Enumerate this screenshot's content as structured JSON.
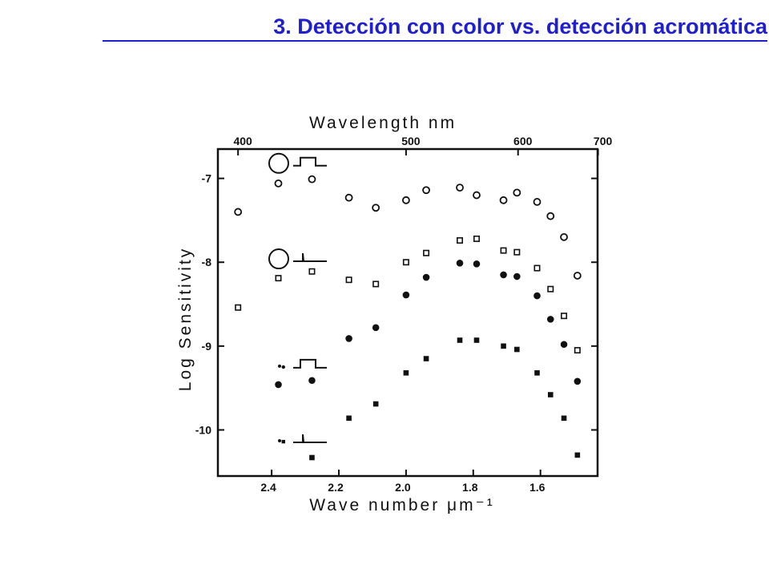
{
  "slide": {
    "title": "3. Detección con color vs. detección acromática"
  },
  "chart_data": {
    "type": "scatter",
    "title": "",
    "xlabel": "Wave number μm⁻¹",
    "x2label": "Wavelength nm",
    "ylabel": "Log Sensitivity",
    "x_ticks": [
      2.4,
      2.2,
      2.0,
      1.8,
      1.6
    ],
    "x_tick_labels": [
      "2.4",
      "2.2",
      "2.0",
      "1.8",
      "1.6"
    ],
    "x2_ticks_nm": [
      400,
      500,
      600,
      700
    ],
    "x2_tick_labels": [
      "400",
      "500",
      "600",
      "700"
    ],
    "y_ticks": [
      -7,
      -8,
      -9,
      -10
    ],
    "y_tick_labels": [
      "-7",
      "-8",
      "-9",
      "-10"
    ],
    "xlim": [
      2.56,
      1.43
    ],
    "ylim": [
      -10.55,
      -6.65
    ],
    "grid": false,
    "series": [
      {
        "marker": "open-circle",
        "stimulus": "large-field-long-pulse",
        "points": [
          [
            2.5,
            -7.4
          ],
          [
            2.38,
            -7.06
          ],
          [
            2.28,
            -7.01
          ],
          [
            2.17,
            -7.23
          ],
          [
            2.09,
            -7.35
          ],
          [
            2.0,
            -7.26
          ],
          [
            1.94,
            -7.14
          ],
          [
            1.84,
            -7.11
          ],
          [
            1.79,
            -7.2
          ],
          [
            1.71,
            -7.26
          ],
          [
            1.67,
            -7.17
          ],
          [
            1.61,
            -7.28
          ],
          [
            1.57,
            -7.45
          ],
          [
            1.53,
            -7.7
          ],
          [
            1.49,
            -8.16
          ]
        ]
      },
      {
        "marker": "open-square",
        "stimulus": "large-field-brief-flash",
        "points": [
          [
            2.5,
            -8.54
          ],
          [
            2.38,
            -8.19
          ],
          [
            2.28,
            -8.11
          ],
          [
            2.17,
            -8.21
          ],
          [
            2.09,
            -8.26
          ],
          [
            2.0,
            -8.0
          ],
          [
            1.94,
            -7.89
          ],
          [
            1.84,
            -7.74
          ],
          [
            1.79,
            -7.72
          ],
          [
            1.71,
            -7.86
          ],
          [
            1.67,
            -7.88
          ],
          [
            1.61,
            -8.07
          ],
          [
            1.57,
            -8.32
          ],
          [
            1.53,
            -8.64
          ],
          [
            1.49,
            -9.05
          ]
        ]
      },
      {
        "marker": "filled-circle",
        "stimulus": "small-field-long-pulse",
        "points": [
          [
            2.38,
            -9.46
          ],
          [
            2.365,
            -9.25
          ],
          [
            2.28,
            -9.41
          ],
          [
            2.17,
            -8.91
          ],
          [
            2.09,
            -8.78
          ],
          [
            2.0,
            -8.39
          ],
          [
            1.94,
            -8.18
          ],
          [
            1.84,
            -8.01
          ],
          [
            1.79,
            -8.02
          ],
          [
            1.71,
            -8.15
          ],
          [
            1.67,
            -8.17
          ],
          [
            1.61,
            -8.4
          ],
          [
            1.57,
            -8.68
          ],
          [
            1.53,
            -8.98
          ],
          [
            1.49,
            -9.42
          ]
        ]
      },
      {
        "marker": "filled-square",
        "stimulus": "small-field-brief-flash",
        "points": [
          [
            2.365,
            -10.14
          ],
          [
            2.28,
            -10.33
          ],
          [
            2.17,
            -9.86
          ],
          [
            2.09,
            -9.69
          ],
          [
            2.0,
            -9.32
          ],
          [
            1.94,
            -9.15
          ],
          [
            1.84,
            -8.93
          ],
          [
            1.79,
            -8.93
          ],
          [
            1.71,
            -9.0
          ],
          [
            1.67,
            -9.04
          ],
          [
            1.61,
            -9.32
          ],
          [
            1.57,
            -9.58
          ],
          [
            1.53,
            -9.86
          ],
          [
            1.49,
            -10.3
          ]
        ]
      }
    ],
    "stimulus_icons": [
      {
        "name": "large-field-long-pulse",
        "spot": "large",
        "pulse": "long",
        "y": -6.82
      },
      {
        "name": "large-field-brief-flash",
        "spot": "large",
        "pulse": "brief",
        "y": -7.96
      },
      {
        "name": "small-field-long-pulse",
        "spot": "small",
        "pulse": "long",
        "y": -9.23
      },
      {
        "name": "small-field-brief-flash",
        "spot": "small",
        "pulse": "brief",
        "y": -10.12
      }
    ]
  }
}
